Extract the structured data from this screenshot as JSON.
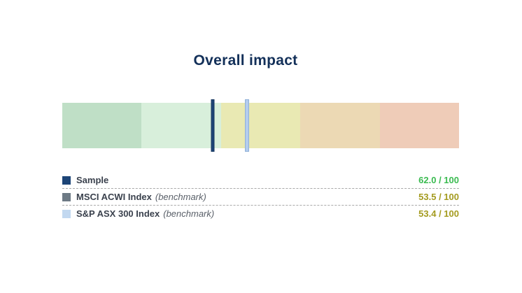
{
  "title": "Overall impact",
  "colors": {
    "background": "#ffffff",
    "title": "#133059",
    "legend_label": "#3a414d",
    "benchmark_text": "#5a6069",
    "separator": "#a8a8a8",
    "value_good": "#3bbb51",
    "value_mid": "#a49b1f"
  },
  "chart_data": {
    "type": "bullet-gauge",
    "title": "Overall impact",
    "scale": {
      "min": 0,
      "max": 100,
      "reversed": true,
      "note_direction": "max (best) at left green end, min at right red end"
    },
    "bands": [
      {
        "span_pct": 20,
        "color": "#bfdfc6"
      },
      {
        "span_pct": 20,
        "color": "#d8efdb"
      },
      {
        "span_pct": 20,
        "color": "#e9e9b3"
      },
      {
        "span_pct": 20,
        "color": "#ecd9b4"
      },
      {
        "span_pct": 20,
        "color": "#efccb8"
      }
    ],
    "series": [
      {
        "name": "Sample",
        "suffix": "",
        "value": 62.0,
        "max": 100,
        "display": "62.0 / 100",
        "benchmark": false,
        "marker_color": "#1d4577",
        "marker_border": "#17375f",
        "marker_width": 5,
        "swatch_color": "#1d4577",
        "value_color": "#3bbb51"
      },
      {
        "name": "MSCI ACWI Index",
        "suffix": "(benchmark)",
        "value": 53.5,
        "max": 100,
        "display": "53.5 / 100",
        "benchmark": true,
        "marker_color": "#6d7a85",
        "marker_border": "#5f6b76",
        "marker_width": 6,
        "swatch_color": "#6d7a85",
        "value_color": "#a49b1f"
      },
      {
        "name": "S&P ASX 300 Index",
        "suffix": "(benchmark)",
        "value": 53.4,
        "max": 100,
        "display": "53.4 / 100",
        "benchmark": true,
        "marker_color": "#b3cdee",
        "marker_border": "#8fb0d8",
        "marker_width": 6,
        "swatch_color": "#c2d8f0",
        "value_color": "#a49b1f"
      }
    ]
  }
}
